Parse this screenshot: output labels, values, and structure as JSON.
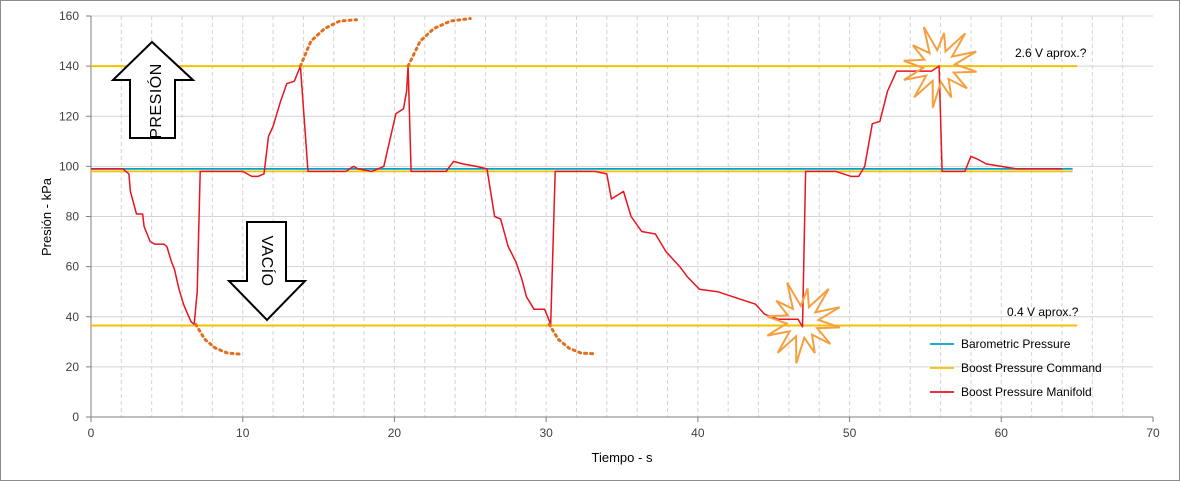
{
  "chart_data": {
    "type": "line",
    "xlabel": "Tiempo - s",
    "ylabel": "Presión - kPa",
    "xlim": [
      0,
      70
    ],
    "ylim": [
      0,
      160
    ],
    "xticks": [
      0,
      10,
      20,
      30,
      40,
      50,
      60,
      70
    ],
    "yticks": [
      0,
      20,
      40,
      60,
      80,
      100,
      120,
      140,
      160
    ],
    "grid": true,
    "legend_position": "bottom-right",
    "series": [
      {
        "name": "Barometric Pressure",
        "color": "#00a2c8",
        "x": [
          0,
          64.7
        ],
        "y": [
          99,
          99
        ]
      },
      {
        "name": "Boost Pressure Command",
        "color": "#f5c000",
        "x": [
          0,
          64.7
        ],
        "y": [
          98,
          98
        ]
      },
      {
        "name": "Boost Pressure Manifold",
        "color": "#e8141e",
        "x": [
          0,
          2.1,
          2.5,
          2.6,
          3.0,
          3.4,
          3.5,
          3.9,
          4.2,
          4.4,
          4.8,
          5.0,
          5.3,
          5.5,
          5.8,
          6.1,
          6.3,
          6.6,
          6.8,
          7.0,
          7.2,
          7.6,
          8.2,
          9.0,
          10.0,
          10.6,
          11.0,
          11.4,
          11.7,
          12.0,
          12.5,
          12.9,
          13.4,
          13.8,
          14.3,
          15.2,
          16.8,
          17.3,
          17.6,
          18.5,
          19.3,
          20.1,
          20.6,
          20.8,
          20.9,
          21.1,
          21.9,
          22.5,
          23.4,
          23.9,
          24.5,
          25.4,
          26.1,
          26.6,
          27.0,
          27.5,
          28.0,
          28.4,
          28.7,
          29.2,
          29.9,
          30.3,
          30.6,
          31.3,
          32.2,
          33.2,
          34.0,
          34.3,
          35.1,
          35.6,
          36.3,
          37.2,
          37.9,
          38.8,
          39.3,
          40.1,
          41.3,
          42.8,
          43.8,
          44.4,
          45.3,
          46.6,
          46.9,
          47.1,
          47.8,
          49.1,
          50.1,
          50.6,
          51.0,
          51.5,
          52.0,
          52.5,
          53.1,
          54.3,
          55.4,
          55.9,
          56.1,
          56.4,
          56.8,
          57.6,
          58.0,
          58.4,
          59.0,
          60.0,
          61.0,
          62.0,
          64.0
        ],
        "y": [
          99,
          99,
          97,
          90,
          81,
          81,
          76,
          70,
          69,
          69,
          69,
          68,
          62,
          59,
          51,
          45,
          42,
          38,
          37,
          50,
          98,
          98,
          98,
          98,
          98,
          96,
          96,
          97,
          112,
          116,
          126,
          133,
          134,
          140,
          98,
          98,
          98,
          100,
          99,
          98,
          100,
          121,
          123,
          130,
          140,
          98,
          98,
          98,
          98,
          102,
          101,
          100,
          99,
          80,
          79,
          68,
          62,
          55,
          48,
          43,
          43,
          37,
          98,
          98,
          98,
          98,
          97,
          87,
          90,
          80,
          74,
          73,
          66,
          60,
          56,
          51,
          50,
          47,
          45,
          41,
          39,
          39,
          36,
          98,
          98,
          98,
          96,
          96,
          100,
          117,
          118,
          130,
          138,
          138,
          138,
          140,
          98,
          98,
          98,
          98,
          104,
          103,
          101,
          100,
          99,
          99,
          99
        ]
      }
    ],
    "annotations": {
      "upper_label": "2.6 V aprox.?",
      "lower_label": "0.4 V aprox.?",
      "upper_line_y": 140,
      "lower_line_y": 36.5,
      "line_x_end": 65,
      "arrow_up_label": "PRESIÓN",
      "arrow_down_label": "VACÍO",
      "dotted_color": "#e07020",
      "dotted_curves": [
        {
          "x": [
            6.9,
            7.5,
            8.2,
            9.0,
            10.0
          ],
          "y": [
            37,
            31,
            27.5,
            25.5,
            25
          ]
        },
        {
          "x": [
            13.8,
            14.5,
            15.4,
            16.4,
            17.5
          ],
          "y": [
            140,
            150,
            155,
            158,
            158.5
          ]
        },
        {
          "x": [
            20.9,
            21.7,
            22.6,
            23.7,
            25.0
          ],
          "y": [
            140,
            150,
            155,
            158,
            159
          ]
        },
        {
          "x": [
            30.2,
            30.8,
            31.5,
            32.3,
            33.3
          ],
          "y": [
            37,
            31,
            27.5,
            25.5,
            25.2
          ]
        }
      ],
      "bursts": [
        {
          "x": 46.9,
          "y": 38
        },
        {
          "x": 55.9,
          "y": 140
        }
      ]
    }
  }
}
